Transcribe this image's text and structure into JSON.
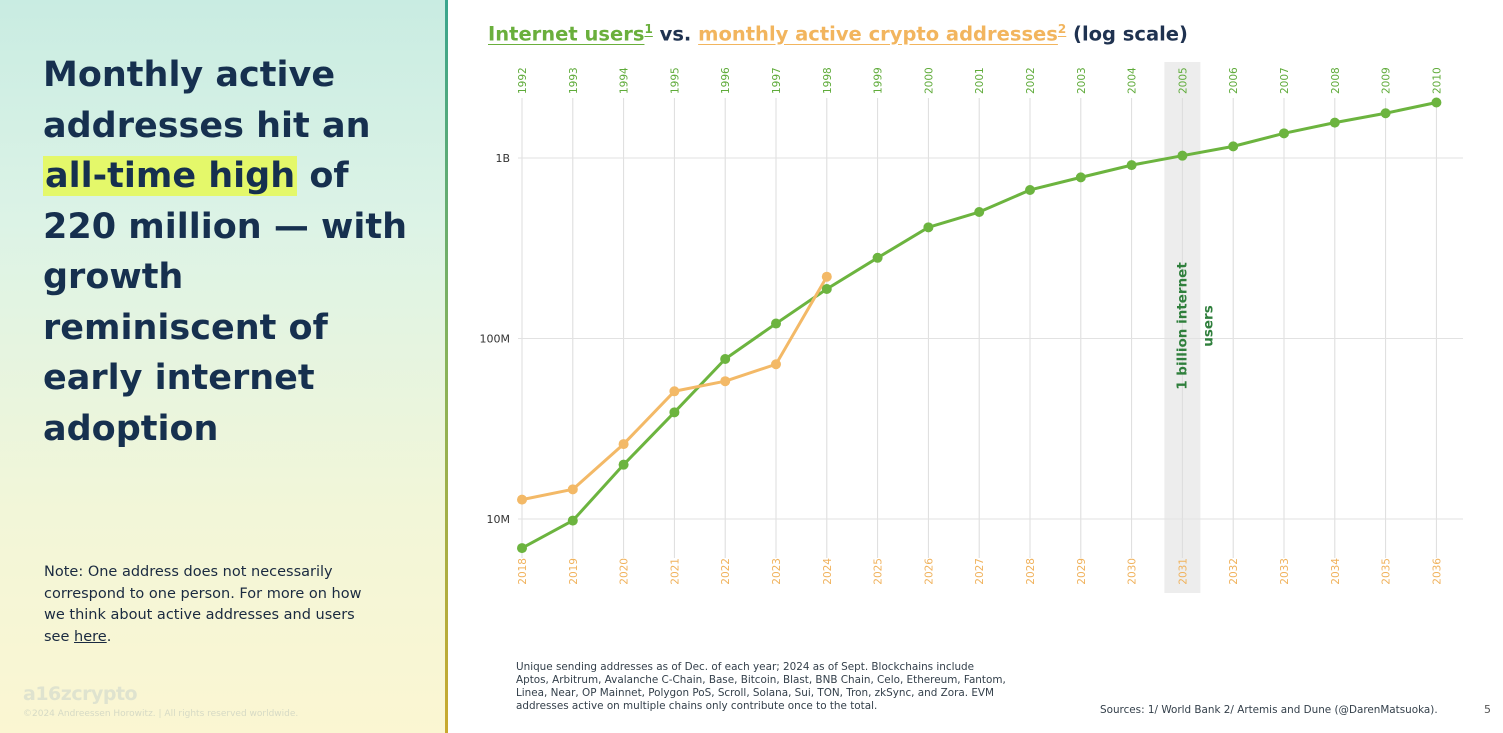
{
  "headline": {
    "part1": "Monthly active addresses hit an ",
    "highlight": "all-time high",
    "part2": " of 220 million — with growth reminiscent of early internet adoption"
  },
  "note": {
    "text": "Note: One address does not necessarily correspond to one person. For more on how we think about active addresses and users see ",
    "link": "here",
    "end": "."
  },
  "brand": {
    "logo_text": "a16zcrypto",
    "copyright": "©2024 Andreessen Horowitz. | All rights reserved worldwide."
  },
  "title": {
    "green_text": "Internet users",
    "green_sup": "1",
    "vs": " vs. ",
    "orange_text": "monthly active crypto addresses",
    "orange_sup": "2",
    "suffix": " (log scale)"
  },
  "footnote": "Unique sending addresses as of Dec. of each year; 2024 as of Sept. Blockchains include Aptos, Arbitrum, Avalanche C-Chain, Base, Bitcoin, Blast, BNB Chain, Celo, Ethereum, Fantom, Linea, Near, OP Mainnet, Polygon PoS, Scroll, Solana, Sui, TON, Tron, zkSync, and Zora. EVM addresses active on multiple chains only contribute once to the total.",
  "sources": "Sources: 1/ World Bank 2/ Artemis and Dune (@DarenMatsuoka).",
  "page_number": "5",
  "colors": {
    "internet": "#6cb43f",
    "crypto": "#f3b967",
    "internet_axis": "#5fab3a",
    "crypto_axis": "#f0b25c",
    "highlight_band": "#ededed",
    "annotation": "#2f7f3c"
  },
  "chart_data": {
    "type": "line",
    "title": "Internet users¹ vs. monthly active crypto addresses² (log scale)",
    "y_scale": "log",
    "ylim": [
      5000000,
      3000000000
    ],
    "yticks": [
      {
        "value": 10000000,
        "label": "10M"
      },
      {
        "value": 100000000,
        "label": "100M"
      },
      {
        "value": 1000000000,
        "label": "1B"
      }
    ],
    "top_axis_internet_years": [
      "1992",
      "1993",
      "1994",
      "1995",
      "1996",
      "1997",
      "1998",
      "1999",
      "2000",
      "2001",
      "2002",
      "2003",
      "2004",
      "2005",
      "2006",
      "2007",
      "2008",
      "2009",
      "2010"
    ],
    "bottom_axis_crypto_years": [
      "2018",
      "2019",
      "2020",
      "2021",
      "2022",
      "2023",
      "2024",
      "2025",
      "2026",
      "2027",
      "2028",
      "2029",
      "2030",
      "2031",
      "2032",
      "2033",
      "2034",
      "2035",
      "2036"
    ],
    "highlight_index": 13,
    "annotation": "1 billion internet users",
    "grid": true,
    "series": [
      {
        "name": "Internet users",
        "values": [
          6900000,
          9800000,
          20000000,
          39000000,
          77000000,
          121000000,
          188000000,
          280000000,
          413000000,
          502000000,
          665000000,
          781000000,
          913000000,
          1030000000,
          1160000000,
          1370000000,
          1570000000,
          1770000000,
          2030000000
        ]
      },
      {
        "name": "monthly active crypto addresses",
        "values": [
          12800000,
          14600000,
          26000000,
          51000000,
          58000000,
          72000000,
          220000000,
          null,
          null,
          null,
          null,
          null,
          null,
          null,
          null,
          null,
          null,
          null,
          null
        ]
      }
    ]
  }
}
